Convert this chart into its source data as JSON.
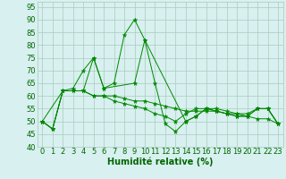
{
  "series": [
    {
      "x": [
        0,
        1,
        2,
        3,
        4,
        5,
        6,
        7,
        8,
        9,
        10,
        11,
        12,
        13,
        14,
        15,
        16,
        17,
        18,
        19,
        20,
        21,
        22,
        23
      ],
      "y": [
        50,
        47,
        62,
        62,
        62,
        60,
        60,
        60,
        59,
        58,
        58,
        57,
        56,
        55,
        54,
        54,
        54,
        54,
        53,
        53,
        53,
        55,
        55,
        49
      ]
    },
    {
      "x": [
        0,
        1,
        2,
        3,
        4,
        5,
        6,
        7,
        8,
        9,
        10,
        11,
        12,
        13,
        14,
        15,
        16,
        17,
        18,
        19,
        20,
        21,
        22,
        23
      ],
      "y": [
        50,
        47,
        62,
        63,
        70,
        75,
        63,
        65,
        84,
        90,
        82,
        65,
        49,
        46,
        50,
        52,
        55,
        54,
        53,
        52,
        52,
        51,
        51,
        49
      ]
    },
    {
      "x": [
        0,
        1,
        2,
        3,
        4,
        5,
        6,
        7,
        8,
        9,
        10,
        11,
        12,
        13,
        14,
        15,
        16,
        17,
        18,
        19,
        20,
        21,
        22,
        23
      ],
      "y": [
        50,
        47,
        62,
        62,
        62,
        60,
        60,
        58,
        57,
        56,
        55,
        53,
        52,
        50,
        53,
        55,
        55,
        55,
        54,
        53,
        52,
        55,
        55,
        49
      ]
    },
    {
      "x": [
        0,
        2,
        4,
        5,
        6,
        9,
        10,
        14,
        15,
        16,
        17,
        18,
        19,
        20,
        21,
        22,
        23
      ],
      "y": [
        50,
        62,
        62,
        75,
        63,
        65,
        82,
        50,
        52,
        55,
        54,
        53,
        52,
        52,
        55,
        55,
        49
      ]
    }
  ],
  "line_color": "#008800",
  "marker": "*",
  "marker_size": 3.5,
  "background_color": "#d8f0f0",
  "grid_color": "#aaccbb",
  "xlabel": "Humidité relative (%)",
  "xlabel_color": "#006600",
  "xlabel_fontsize": 7,
  "tick_color": "#006600",
  "tick_fontsize": 6,
  "xlim": [
    -0.5,
    23.5
  ],
  "ylim": [
    40,
    97
  ],
  "yticks": [
    40,
    45,
    50,
    55,
    60,
    65,
    70,
    75,
    80,
    85,
    90,
    95
  ],
  "xticks": [
    0,
    1,
    2,
    3,
    4,
    5,
    6,
    7,
    8,
    9,
    10,
    11,
    12,
    13,
    14,
    15,
    16,
    17,
    18,
    19,
    20,
    21,
    22,
    23
  ],
  "linewidth": 0.7
}
